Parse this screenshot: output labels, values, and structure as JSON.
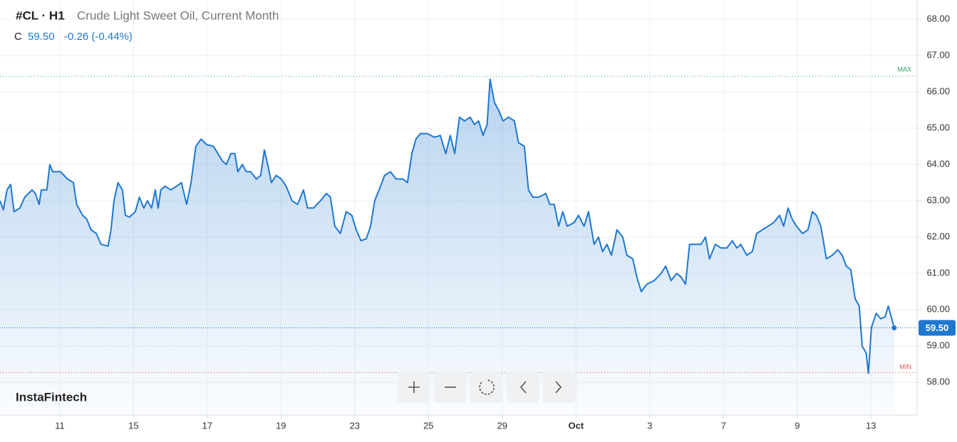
{
  "header": {
    "symbol": "#CL · H1",
    "name": "Crude Light Sweet Oil, Current Month",
    "close_label": "C",
    "close": "59.50",
    "change": "-0.26 (-0.44%)",
    "brand": "InstaFintech"
  },
  "chart_data": {
    "type": "line",
    "color": "#1f77d0",
    "x": [
      -1.62,
      -1.53,
      -1.43,
      -1.33,
      -1.24,
      -1.08,
      -0.95,
      -0.75,
      -0.66,
      -0.56,
      -0.5,
      -0.35,
      -0.27,
      -0.19,
      0.02,
      0.21,
      0.37,
      0.46,
      0.62,
      0.73,
      0.85,
      0.99,
      1.12,
      1.31,
      1.39,
      1.47,
      1.58,
      1.7,
      1.78,
      1.89,
      2.05,
      2.16,
      2.28,
      2.38,
      2.49,
      2.59,
      2.67,
      2.74,
      2.86,
      3.01,
      3.17,
      3.3,
      3.44,
      3.56,
      3.69,
      3.83,
      3.98,
      4.17,
      4.29,
      4.41,
      4.52,
      4.64,
      4.75,
      4.83,
      4.95,
      5.06,
      5.18,
      5.33,
      5.45,
      5.55,
      5.64,
      5.74,
      5.87,
      6.01,
      6.14,
      6.3,
      6.45,
      6.61,
      6.72,
      6.88,
      7.07,
      7.23,
      7.34,
      7.46,
      7.61,
      7.77,
      7.92,
      8.04,
      8.17,
      8.31,
      8.43,
      8.54,
      8.66,
      8.81,
      8.97,
      9.12,
      9.31,
      9.43,
      9.55,
      9.66,
      9.78,
      9.97,
      10.16,
      10.32,
      10.47,
      10.59,
      10.71,
      10.84,
      10.98,
      11.13,
      11.25,
      11.36,
      11.48,
      11.59,
      11.67,
      11.79,
      11.9,
      12.02,
      12.17,
      12.33,
      12.44,
      12.6,
      12.71,
      12.83,
      12.99,
      13.18,
      13.29,
      13.41,
      13.53,
      13.64,
      13.76,
      13.95,
      14.07,
      14.22,
      14.34,
      14.49,
      14.61,
      14.72,
      14.84,
      14.96,
      15.11,
      15.27,
      15.38,
      15.54,
      15.65,
      15.77,
      15.92,
      16.12,
      16.31,
      16.43,
      16.58,
      16.73,
      16.85,
      16.97,
      17.08,
      17.24,
      17.39,
      17.51,
      17.62,
      17.78,
      17.93,
      18.09,
      18.24,
      18.36,
      18.47,
      18.63,
      18.78,
      18.9,
      19.05,
      19.21,
      19.36,
      19.52,
      19.63,
      19.75,
      19.86,
      19.98,
      20.14,
      20.29,
      20.41,
      20.52,
      20.64,
      20.79,
      20.95,
      21.1,
      21.22,
      21.33,
      21.45,
      21.57,
      21.68,
      21.76,
      21.87,
      21.93,
      22.01,
      22.14,
      22.26,
      22.38,
      22.47,
      22.63
    ],
    "values": [
      63.0,
      62.75,
      63.3,
      63.45,
      62.7,
      62.8,
      63.1,
      63.3,
      63.2,
      62.9,
      63.3,
      63.3,
      64.0,
      63.8,
      63.8,
      63.6,
      63.5,
      62.9,
      62.6,
      62.5,
      62.2,
      62.1,
      61.8,
      61.75,
      62.2,
      63.0,
      63.5,
      63.3,
      62.6,
      62.55,
      62.7,
      63.1,
      62.8,
      63.0,
      62.8,
      63.3,
      62.8,
      63.3,
      63.4,
      63.3,
      63.4,
      63.5,
      62.9,
      63.5,
      64.5,
      64.7,
      64.55,
      64.5,
      64.3,
      64.1,
      64.0,
      64.3,
      64.3,
      63.8,
      64.0,
      63.8,
      63.8,
      63.6,
      63.7,
      64.4,
      64.0,
      63.5,
      63.7,
      63.6,
      63.4,
      63.0,
      62.9,
      63.3,
      62.8,
      62.8,
      63.0,
      63.2,
      63.1,
      62.3,
      62.1,
      62.7,
      62.6,
      62.2,
      61.9,
      61.95,
      62.3,
      63.0,
      63.3,
      63.7,
      63.8,
      63.6,
      63.6,
      63.5,
      64.3,
      64.7,
      64.85,
      64.85,
      64.75,
      64.8,
      64.3,
      64.8,
      64.3,
      65.3,
      65.2,
      65.3,
      65.1,
      65.2,
      64.8,
      65.1,
      66.35,
      65.7,
      65.5,
      65.2,
      65.3,
      65.2,
      64.6,
      64.5,
      63.3,
      63.1,
      63.1,
      63.2,
      62.9,
      62.9,
      62.3,
      62.7,
      62.3,
      62.4,
      62.6,
      62.3,
      62.7,
      61.8,
      62.0,
      61.6,
      61.8,
      61.5,
      62.2,
      62.0,
      61.5,
      61.4,
      60.9,
      60.5,
      60.7,
      60.8,
      61.0,
      61.2,
      60.8,
      61.0,
      60.9,
      60.7,
      61.8,
      61.8,
      61.8,
      62.0,
      61.4,
      61.8,
      61.7,
      61.7,
      61.9,
      61.7,
      61.8,
      61.5,
      61.6,
      62.1,
      62.2,
      62.3,
      62.4,
      62.6,
      62.3,
      62.8,
      62.5,
      62.3,
      62.1,
      62.2,
      62.7,
      62.6,
      62.3,
      61.4,
      61.5,
      61.65,
      61.5,
      61.2,
      61.1,
      60.3,
      60.1,
      59.0,
      58.8,
      58.25,
      59.5,
      59.9,
      59.75,
      59.8,
      60.1,
      59.5
    ],
    "xlim": [
      -1.62,
      23.25
    ],
    "xticks": [
      {
        "value": 0,
        "label": "11"
      },
      {
        "value": 2,
        "label": "15"
      },
      {
        "value": 4,
        "label": "17"
      },
      {
        "value": 6,
        "label": "19"
      },
      {
        "value": 8,
        "label": "23"
      },
      {
        "value": 10,
        "label": "25"
      },
      {
        "value": 12,
        "label": "29"
      },
      {
        "value": 14,
        "label": "Oct"
      },
      {
        "value": 16,
        "label": "3"
      },
      {
        "value": 18,
        "label": "7"
      },
      {
        "value": 20,
        "label": "9"
      },
      {
        "value": 22,
        "label": "13"
      }
    ],
    "ylim": [
      57.1,
      68.53
    ],
    "yticks": [
      {
        "value": 58,
        "label": "58.00"
      },
      {
        "value": 59,
        "label": "59.00"
      },
      {
        "value": 60,
        "label": "60.00"
      },
      {
        "value": 61,
        "label": "61.00"
      },
      {
        "value": 62,
        "label": "62.00"
      },
      {
        "value": 63,
        "label": "63.00"
      },
      {
        "value": 64,
        "label": "64.00"
      },
      {
        "value": 65,
        "label": "65.00"
      },
      {
        "value": 66,
        "label": "66.00"
      },
      {
        "value": 67,
        "label": "67.00"
      },
      {
        "value": 68,
        "label": "68.00"
      }
    ],
    "grid": true,
    "max_level": {
      "value": 66.43,
      "label": "MAX",
      "color": "#2e9e5b"
    },
    "min_level": {
      "value": 58.27,
      "label": "MIN",
      "color": "#e05050"
    },
    "last_price": {
      "value": 59.5,
      "label": "59.50"
    }
  }
}
